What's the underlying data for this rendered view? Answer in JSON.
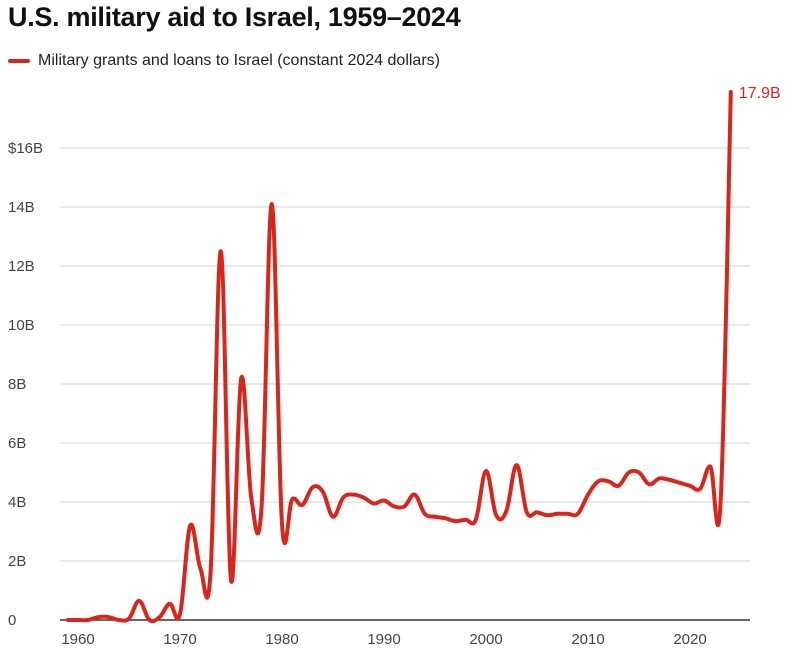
{
  "chart_data": {
    "type": "line",
    "title": "U.S. military aid to Israel, 1959–2024",
    "xlabel": "",
    "ylabel": "",
    "xlim": [
      1959,
      2024
    ],
    "ylim": [
      0,
      16
    ],
    "grid": true,
    "legend_position": "top-left",
    "x_ticks": [
      "1960",
      "1970",
      "1980",
      "1990",
      "2000",
      "2010",
      "2020"
    ],
    "x_tick_values": [
      1960,
      1970,
      1980,
      1990,
      2000,
      2010,
      2020
    ],
    "y_ticks": [
      "0",
      "2B",
      "4B",
      "6B",
      "8B",
      "10B",
      "12B",
      "14B",
      "$16B"
    ],
    "y_tick_values": [
      0,
      2,
      4,
      6,
      8,
      10,
      12,
      14,
      16
    ],
    "series": [
      {
        "name": "Military grants and loans to Israel (constant 2024 dollars)",
        "color": "#d9261c",
        "x": [
          1959,
          1960,
          1961,
          1962,
          1963,
          1964,
          1965,
          1966,
          1967,
          1968,
          1969,
          1970,
          1971,
          1972,
          1973,
          1974,
          1975,
          1976,
          1977,
          1978,
          1979,
          1980,
          1981,
          1982,
          1983,
          1984,
          1985,
          1986,
          1987,
          1988,
          1989,
          1990,
          1991,
          1992,
          1993,
          1994,
          1995,
          1996,
          1997,
          1998,
          1999,
          2000,
          2001,
          2002,
          2003,
          2004,
          2005,
          2006,
          2007,
          2008,
          2009,
          2010,
          2011,
          2012,
          2013,
          2014,
          2015,
          2016,
          2017,
          2018,
          2019,
          2020,
          2021,
          2022,
          2023,
          2024
        ],
        "values": [
          0,
          0,
          0,
          0.1,
          0.1,
          0,
          0.05,
          0.65,
          0,
          0.1,
          0.55,
          0.2,
          3.2,
          1.75,
          1.65,
          12.5,
          1.35,
          8.2,
          4.1,
          3.85,
          14.1,
          3.25,
          4.1,
          3.9,
          4.5,
          4.35,
          3.5,
          4.15,
          4.25,
          4.15,
          3.95,
          4.05,
          3.85,
          3.85,
          4.25,
          3.6,
          3.5,
          3.45,
          3.35,
          3.4,
          3.4,
          5.05,
          3.55,
          3.7,
          5.25,
          3.65,
          3.65,
          3.55,
          3.6,
          3.6,
          3.6,
          4.25,
          4.7,
          4.7,
          4.55,
          5.0,
          5.0,
          4.6,
          4.8,
          4.75,
          4.65,
          4.55,
          4.45,
          5.2,
          4.0,
          17.9
        ]
      }
    ],
    "annotations": [
      {
        "x": 2024,
        "text": "17.9B"
      }
    ]
  }
}
